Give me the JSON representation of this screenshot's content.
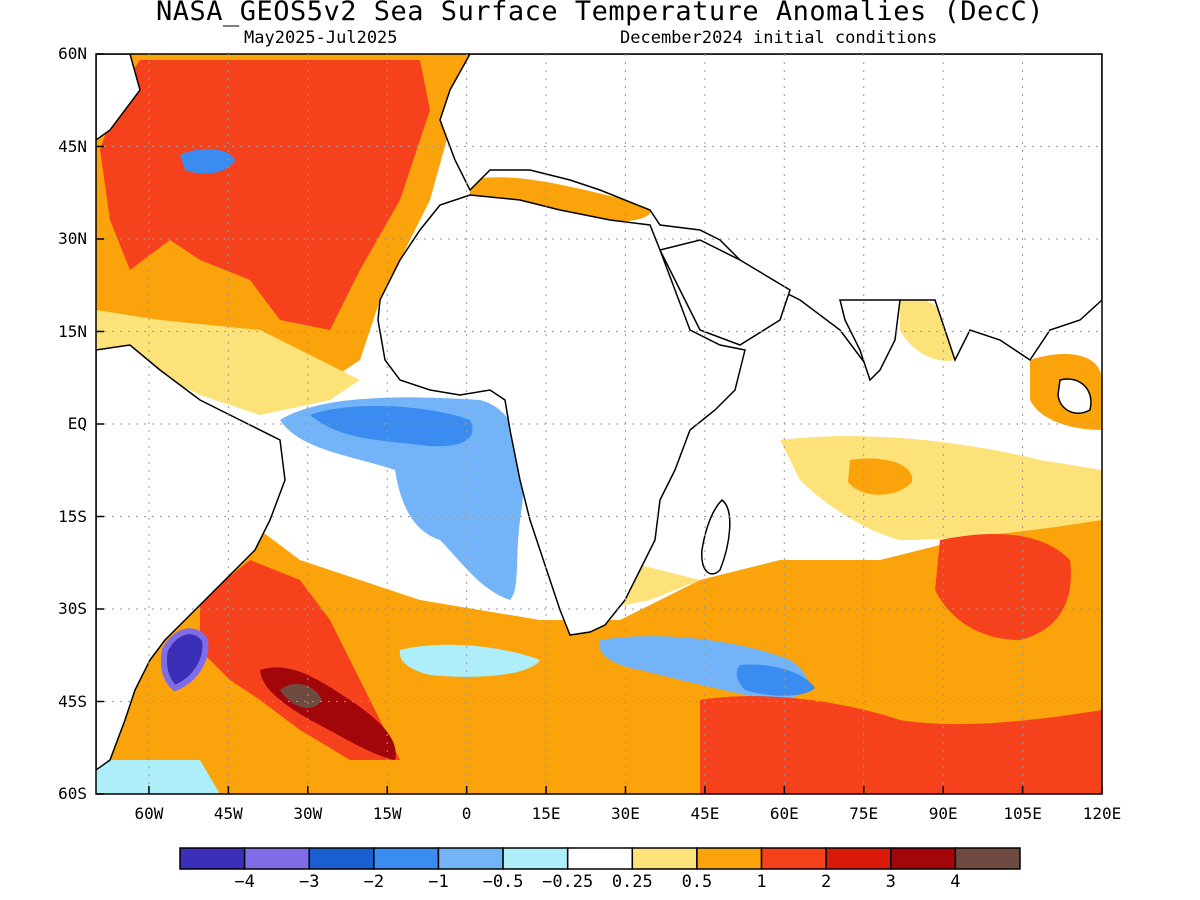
{
  "title": "NASA_GEOS5v2 Sea Surface Temperature Anomalies (DecC)",
  "subtitle_left": "May2025-Jul2025",
  "subtitle_right": "December2024 initial conditions",
  "lat_labels": [
    "60N",
    "45N",
    "30N",
    "15N",
    "EQ",
    "15S",
    "30S",
    "45S",
    "60S"
  ],
  "lon_labels": [
    "60W",
    "45W",
    "30W",
    "15W",
    "0",
    "15E",
    "30E",
    "45E",
    "60E",
    "75E",
    "90E",
    "105E",
    "120E"
  ],
  "colorbar": {
    "labels": [
      "−4",
      "−3",
      "−2",
      "−1",
      "−0.5",
      "−0.25",
      "0.25",
      "0.5",
      "1",
      "2",
      "3",
      "4"
    ],
    "colors": [
      "#3b2fb7",
      "#7f6de8",
      "#1a5fcf",
      "#3a8cf0",
      "#72b4f7",
      "#aeeef8",
      "#ffffff",
      "#fde27a",
      "#fba30a",
      "#f5421c",
      "#d91a0a",
      "#a3060a",
      "#6e4a40"
    ]
  },
  "map_data": {
    "projection": "equirectangular",
    "lon_range": [
      -70,
      120
    ],
    "lat_range": [
      -60,
      60
    ],
    "features": [
      {
        "type": "warm",
        "lon": -40,
        "lat": 42,
        "level": "1 to 2"
      },
      {
        "type": "warm",
        "lon": -20,
        "lat": 25,
        "level": "1 to 2"
      },
      {
        "type": "cool",
        "lon": 0,
        "lat": -3,
        "level": "-1 to -2"
      },
      {
        "type": "cool",
        "lon": -55,
        "lat": -40,
        "level": "below -4"
      },
      {
        "type": "warm",
        "lon": -30,
        "lat": -45,
        "level": "above 4"
      },
      {
        "type": "cool",
        "lon": 40,
        "lat": -40,
        "level": "-1 to -2"
      },
      {
        "type": "warm",
        "lon": 60,
        "lat": -50,
        "level": "1 to 2"
      },
      {
        "type": "warm",
        "lon": 100,
        "lat": -30,
        "level": "1 to 2"
      },
      {
        "type": "warm",
        "lon": 80,
        "lat": -10,
        "level": "0.5 to 1"
      }
    ]
  }
}
